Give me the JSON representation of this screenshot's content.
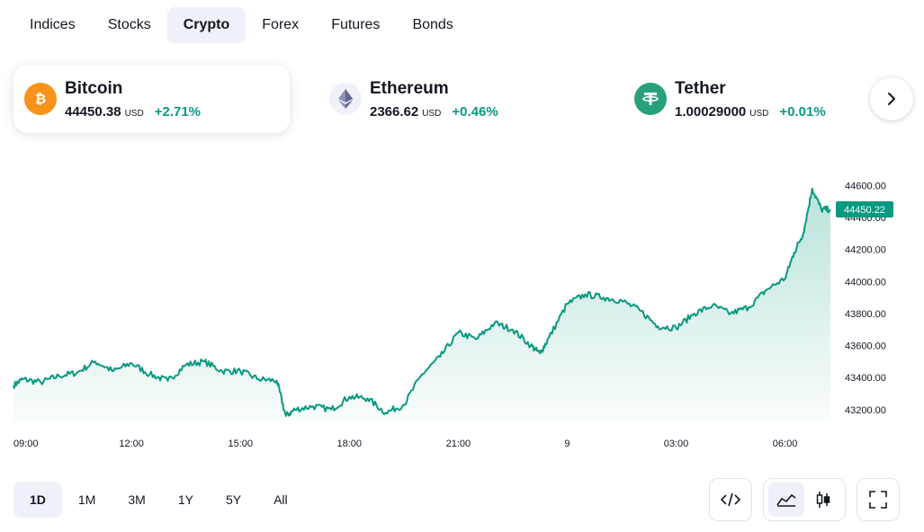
{
  "tabs": [
    {
      "label": "Indices",
      "active": false
    },
    {
      "label": "Stocks",
      "active": false
    },
    {
      "label": "Crypto",
      "active": true
    },
    {
      "label": "Forex",
      "active": false
    },
    {
      "label": "Futures",
      "active": false
    },
    {
      "label": "Bonds",
      "active": false
    }
  ],
  "tickers": [
    {
      "name": "Bitcoin",
      "price": "44450.38",
      "currency": "USD",
      "change": "+2.71%",
      "icon": "bitcoin-icon",
      "color": "#f7931a"
    },
    {
      "name": "Ethereum",
      "price": "2366.62",
      "currency": "USD",
      "change": "+0.46%",
      "icon": "ethereum-icon",
      "color": "#627eea"
    },
    {
      "name": "Tether",
      "price": "1.00029000",
      "currency": "USD",
      "change": "+0.01%",
      "icon": "tether-icon",
      "color": "#26a17b"
    }
  ],
  "chart_data": {
    "type": "area",
    "series": [
      {
        "x": [
          "08:45",
          "09:00",
          "09:30",
          "10:00",
          "10:30",
          "11:00",
          "11:30",
          "12:00",
          "12:30",
          "13:00",
          "13:30",
          "14:00",
          "14:30",
          "15:00",
          "15:30",
          "16:00",
          "16:15",
          "16:30",
          "17:00",
          "17:30",
          "18:00",
          "18:30",
          "19:00",
          "19:30",
          "20:00",
          "20:30",
          "21:00",
          "21:30",
          "22:00",
          "22:30",
          "23:00",
          "23:15",
          "23:30",
          "00:00",
          "00:30",
          "01:00",
          "01:30",
          "02:00",
          "02:30",
          "03:00",
          "03:30",
          "04:00",
          "04:30",
          "05:00",
          "05:30",
          "06:00",
          "06:15",
          "06:30",
          "06:45",
          "07:00",
          "07:15"
        ],
        "y": [
          43350,
          43390,
          43370,
          43410,
          43430,
          43500,
          43440,
          43490,
          43420,
          43380,
          43480,
          43500,
          43440,
          43440,
          43390,
          43380,
          43160,
          43200,
          43220,
          43200,
          43280,
          43270,
          43180,
          43230,
          43420,
          43530,
          43680,
          43640,
          43740,
          43700,
          43600,
          43550,
          43650,
          43860,
          43920,
          43900,
          43880,
          43820,
          43720,
          43710,
          43800,
          43850,
          43800,
          43840,
          43950,
          44020,
          44180,
          44300,
          44580,
          44450,
          44450
        ]
      }
    ],
    "x_ticks": [
      "09:00",
      "12:00",
      "15:00",
      "18:00",
      "21:00",
      "9",
      "03:00",
      "06:00"
    ],
    "y_ticks": [
      "43200.00",
      "43400.00",
      "43600.00",
      "43800.00",
      "44000.00",
      "44200.00",
      "44400.00",
      "44600.00"
    ],
    "ylim": [
      43120,
      44720
    ],
    "last_value": "44450.22",
    "line_color": "#089981",
    "grid": false
  },
  "ranges": [
    {
      "label": "1D",
      "active": true
    },
    {
      "label": "1M",
      "active": false
    },
    {
      "label": "3M",
      "active": false
    },
    {
      "label": "1Y",
      "active": false
    },
    {
      "label": "5Y",
      "active": false
    },
    {
      "label": "All",
      "active": false
    }
  ],
  "tools": {
    "embed_icon": "code-icon",
    "area_icon": "area-chart-icon",
    "candles_icon": "candlestick-icon",
    "fullscreen_icon": "fullscreen-icon"
  }
}
